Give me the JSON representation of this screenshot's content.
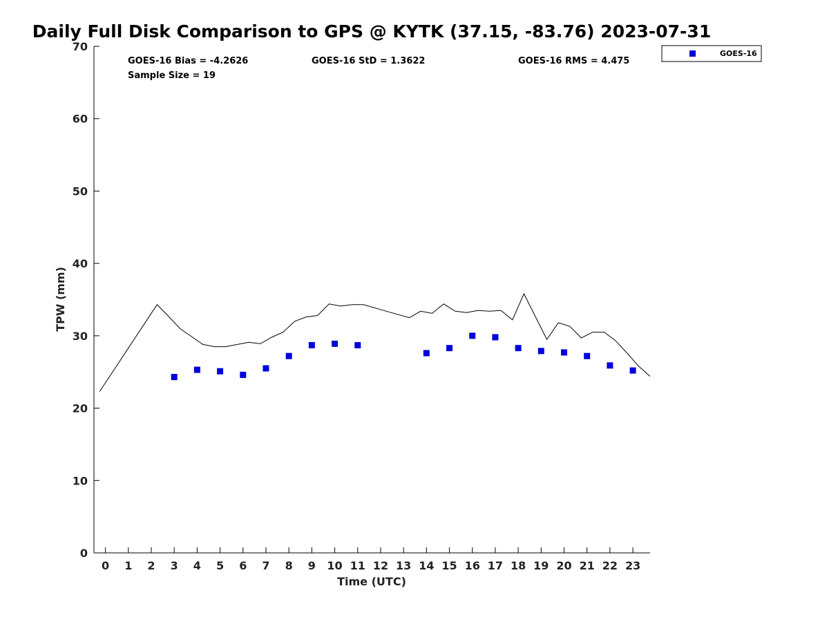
{
  "chart_data": {
    "type": "scatter",
    "title": "Daily Full Disk Comparison to GPS @ KYTK (37.15, -83.76) 2023-07-31",
    "xlabel": "Time (UTC)",
    "ylabel": "TPW (mm)",
    "xlim": [
      -0.5,
      23.75
    ],
    "ylim": [
      0,
      70
    ],
    "x_ticks": [
      0,
      1,
      2,
      3,
      4,
      5,
      6,
      7,
      8,
      9,
      10,
      11,
      12,
      13,
      14,
      15,
      16,
      17,
      18,
      19,
      20,
      21,
      22,
      23
    ],
    "y_ticks": [
      0,
      10,
      20,
      30,
      40,
      50,
      60,
      70
    ],
    "grid": false,
    "legend": {
      "position": "top-right",
      "entries": [
        "GOES-16"
      ]
    },
    "stats": {
      "bias": "GOES-16 Bias = -4.2626",
      "std": "GOES-16 StD = 1.3622",
      "rms": "GOES-16 RMS = 4.475",
      "sample": "Sample Size = 19"
    },
    "series": [
      {
        "name": "GOES-16",
        "kind": "scatter",
        "marker": "square",
        "color": "#0000dd",
        "x": [
          3,
          4,
          5,
          6,
          7,
          8,
          9,
          10,
          11,
          14,
          15,
          16,
          17,
          18,
          19,
          20,
          21,
          22,
          23
        ],
        "y": [
          24.3,
          25.3,
          25.1,
          24.6,
          25.5,
          27.2,
          28.7,
          28.9,
          28.7,
          27.6,
          28.3,
          30.0,
          29.8,
          28.3,
          27.9,
          27.7,
          27.2,
          25.9,
          25.2
        ]
      },
      {
        "kind": "line",
        "color": "#000000",
        "x": [
          -0.25,
          2.25,
          2.75,
          3.25,
          3.75,
          4.25,
          4.75,
          5.25,
          5.75,
          6.25,
          6.75,
          7.25,
          7.75,
          8.25,
          8.75,
          9.25,
          9.75,
          10.25,
          10.75,
          11.25,
          12.25,
          13.25,
          13.75,
          14.25,
          14.75,
          15.25,
          15.75,
          16.25,
          16.75,
          17.25,
          17.75,
          18.25,
          19.25,
          19.75,
          20.25,
          20.75,
          21.25,
          21.75,
          22.25,
          22.75,
          23.25,
          23.75
        ],
        "y": [
          22.3,
          34.3,
          32.7,
          31.0,
          29.9,
          28.8,
          28.5,
          28.5,
          28.8,
          29.1,
          28.9,
          29.8,
          30.5,
          32.0,
          32.6,
          32.8,
          34.4,
          34.1,
          34.3,
          34.3,
          33.4,
          32.5,
          33.4,
          33.1,
          34.4,
          33.4,
          33.2,
          33.5,
          33.4,
          33.5,
          32.2,
          35.8,
          29.5,
          31.8,
          31.3,
          29.7,
          30.5,
          30.5,
          29.3,
          27.6,
          25.8,
          24.4
        ]
      }
    ]
  }
}
